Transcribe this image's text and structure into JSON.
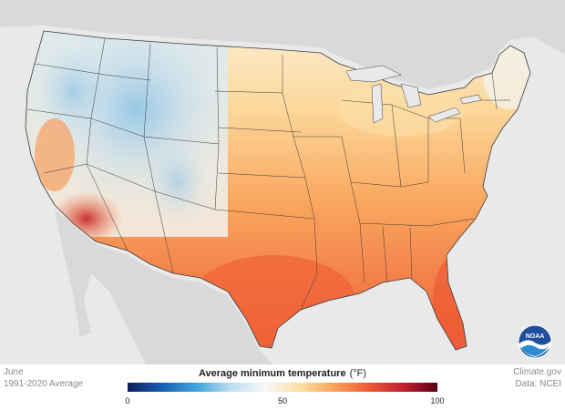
{
  "footer": {
    "month": "June",
    "period": "1991-2020 Average",
    "source": "Climate.gov",
    "data": "Data: NCEI"
  },
  "legend": {
    "title": "Average minimum temperature",
    "unit": "(°F)",
    "min": 0,
    "max": 100,
    "tick_labels": [
      "0",
      "50",
      "100"
    ],
    "gradient_colors": [
      "#0d1c5a",
      "#1a5fb4",
      "#3fa4dd",
      "#bcdff2",
      "#f7f7f7",
      "#fde0a5",
      "#f9a25a",
      "#ee5a36",
      "#c2202c",
      "#5a0019"
    ]
  },
  "logo": {
    "name": "noaa-logo",
    "text": "NOAA"
  },
  "colors": {
    "ocean": "#e9e9ea",
    "land_outside": "#d9d9d9",
    "state_lines": "#3b3b3b"
  }
}
